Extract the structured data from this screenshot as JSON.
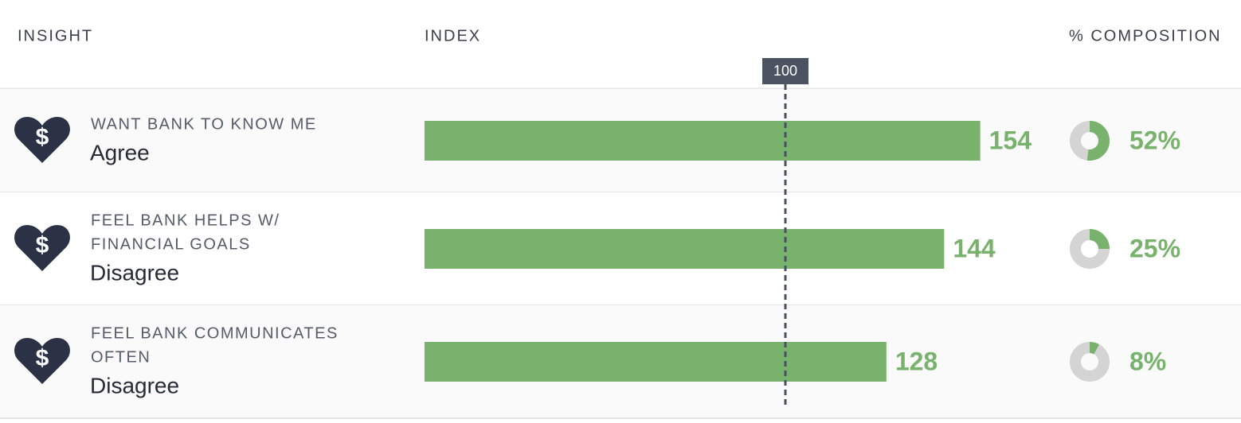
{
  "header": {
    "insight": "INSIGHT",
    "index": "INDEX",
    "composition": "% COMPOSITION"
  },
  "reference": 100,
  "rows": [
    {
      "question": [
        "WANT BANK TO KNOW ME"
      ],
      "answer": "Agree",
      "index": 154,
      "composition": 52,
      "composition_label": "52%"
    },
    {
      "question": [
        "FEEL BANK HELPS W/",
        "FINANCIAL GOALS"
      ],
      "answer": "Disagree",
      "index": 144,
      "composition": 25,
      "composition_label": "25%"
    },
    {
      "question": [
        "FEEL BANK COMMUNICATES",
        "OFTEN"
      ],
      "answer": "Disagree",
      "index": 128,
      "composition": 8,
      "composition_label": "8%"
    }
  ]
}
